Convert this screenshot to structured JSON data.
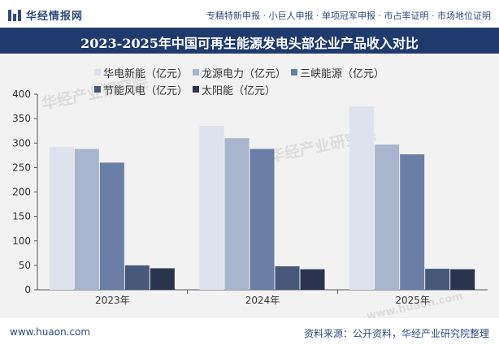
{
  "header": {
    "brand": "华经情报网",
    "tagline": "专精特新申报 · 小巨人申报 · 单项冠军申报 · 市占率证明 · 市场地位证明"
  },
  "footer": {
    "website": "www.huaon.com",
    "source": "资料来源：公开资料，华经产业研究院整理"
  },
  "watermarks": [
    "华经产业研究院",
    "华经产业研究院",
    "www.huaon.com"
  ],
  "colors": {
    "header_bg": "#1f3b6e",
    "plot_bg": "#f2f2f2",
    "series": [
      "#dde2ec",
      "#a9b5cc",
      "#6a7ea6",
      "#47597a",
      "#2a344d"
    ]
  },
  "chart_data": {
    "type": "bar",
    "title": "2023-2025年中国可再生能源发电头部企业产品收入对比",
    "categories": [
      "2023年",
      "2024年",
      "2025年"
    ],
    "series": [
      {
        "name": "华电新能（亿元）",
        "values": [
          292,
          335,
          375
        ]
      },
      {
        "name": "龙源电力（亿元）",
        "values": [
          288,
          310,
          297
        ]
      },
      {
        "name": "三峡能源（亿元）",
        "values": [
          260,
          288,
          277
        ]
      },
      {
        "name": "节能风电（亿元）",
        "values": [
          50,
          48,
          43
        ]
      },
      {
        "name": "太阳能（亿元）",
        "values": [
          44,
          42,
          42
        ]
      }
    ],
    "yticks": [
      0,
      50,
      100,
      150,
      200,
      250,
      300,
      350,
      400
    ],
    "ylim": [
      0,
      400
    ],
    "legend_position": "top",
    "grid": false
  }
}
